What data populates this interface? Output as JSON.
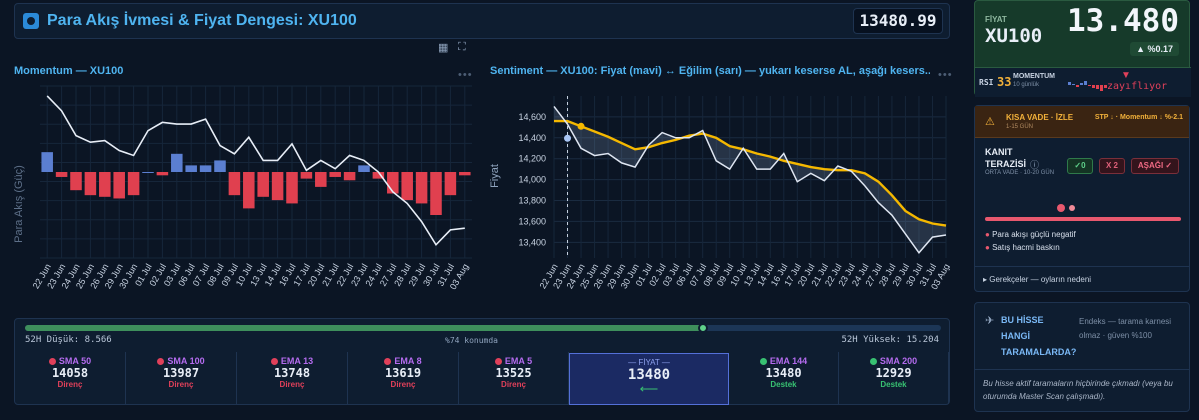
{
  "header": {
    "title": "Para Akış İvmesi & Fiyat Dengesi: XU100",
    "price": "13480.99"
  },
  "momentum_chart": {
    "title": "Momentum — XU100",
    "ylabel": "Para Akış (Güç)",
    "chart_data": {
      "type": "bar",
      "title": "Momentum — XU100",
      "ylabel": "Para Akış (Güç)",
      "categories": [
        "22 Jun",
        "23 Jun",
        "24 Jun",
        "25 Jun",
        "26 Jun",
        "29 Jun",
        "30 Jun",
        "01 Jul",
        "02 Jul",
        "03 Jul",
        "06 Jul",
        "07 Jul",
        "08 Jul",
        "09 Jul",
        "10 Jul",
        "13 Jul",
        "14 Jul",
        "16 Jul",
        "17 Jul",
        "20 Jul",
        "21 Jul",
        "22 Jul",
        "23 Jul",
        "24 Jul",
        "27 Jul",
        "28 Jul",
        "29 Jul",
        "30 Jul",
        "31 Jul",
        "03 Aug"
      ],
      "series": [
        {
          "type": "bar",
          "values": [
            0.6,
            -0.15,
            -0.55,
            -0.7,
            -0.75,
            -0.8,
            -0.7,
            0.0,
            -0.1,
            0.55,
            0.2,
            0.2,
            0.35,
            -0.7,
            -1.1,
            -0.75,
            -0.85,
            -0.95,
            -0.2,
            -0.45,
            -0.15,
            -0.25,
            0.2,
            -0.2,
            -0.65,
            -0.85,
            -0.95,
            -1.3,
            -0.7,
            -0.1
          ]
        },
        {
          "type": "line",
          "values": [
            2.3,
            1.85,
            1.1,
            0.9,
            0.95,
            0.65,
            0.5,
            1.25,
            1.5,
            1.45,
            1.45,
            1.6,
            0.8,
            0.55,
            1.05,
            0.35,
            0.35,
            0.85,
            0.05,
            0.35,
            0.1,
            0.5,
            0.35,
            0.0,
            -0.6,
            -0.95,
            -1.5,
            -2.2,
            -1.75,
            -1.7
          ]
        }
      ]
    }
  },
  "sentiment_chart": {
    "title": "Sentiment — XU100: Fiyat (mavi) ↔ Eğilim (sarı) — yukarı keserse AL, aşağı kesers...",
    "ylabel": "Fiyat",
    "chart_data": {
      "type": "line",
      "title": "Sentiment — XU100: Fiyat (mavi) ↔ Eğilim (sarı) — yukarı keserse AL, aşağı kesers...",
      "ylabel": "Fiyat",
      "ylim": [
        13250,
        14800
      ],
      "yticks": [
        13400,
        13600,
        13800,
        14000,
        14200,
        14400,
        14600
      ],
      "ytick_labels": [
        "13,400",
        "13,600",
        "13,800",
        "14,000",
        "14,200",
        "14,400",
        "14,600"
      ],
      "x": [
        "22 Jun",
        "23 Jun",
        "24 Jun",
        "25 Jun",
        "26 Jun",
        "29 Jun",
        "30 Jun",
        "01 Jul",
        "02 Jul",
        "03 Jul",
        "06 Jul",
        "07 Jul",
        "08 Jul",
        "09 Jul",
        "10 Jul",
        "13 Jul",
        "14 Jul",
        "16 Jul",
        "17 Jul",
        "20 Jul",
        "21 Jul",
        "22 Jul",
        "23 Jul",
        "24 Jul",
        "27 Jul",
        "28 Jul",
        "29 Jul",
        "30 Jul",
        "31 Jul",
        "03 Aug"
      ],
      "series": [
        {
          "color": "#dfe6f2",
          "values": [
            14700,
            14530,
            14300,
            14230,
            14250,
            14160,
            14120,
            14330,
            14450,
            14400,
            14400,
            14470,
            14180,
            14100,
            14300,
            14100,
            14100,
            14250,
            13980,
            14060,
            13990,
            14130,
            14080,
            13940,
            13780,
            13660,
            13480,
            13300,
            13450,
            13470
          ]
        },
        {
          "color": "#f5b800",
          "values": [
            14560,
            14560,
            14510,
            14460,
            14410,
            14350,
            14290,
            14310,
            14350,
            14380,
            14420,
            14440,
            14400,
            14320,
            14290,
            14250,
            14220,
            14180,
            14150,
            14120,
            14100,
            14090,
            14090,
            14060,
            13980,
            13850,
            13700,
            13620,
            13580,
            13560
          ]
        }
      ]
    }
  },
  "range_bar": {
    "low_label": "52H Düşük: 8.566",
    "position_label": "%74 konumda",
    "high_label": "52H Yüksek: 15.204",
    "position_percent": 74
  },
  "levels": [
    {
      "name": "SMA 50",
      "value": "14058",
      "status": "Direnç",
      "color": "#e0405a",
      "kind": "res"
    },
    {
      "name": "SMA 100",
      "value": "13987",
      "status": "Direnç",
      "color": "#e0405a",
      "kind": "res"
    },
    {
      "name": "EMA 13",
      "value": "13748",
      "status": "Direnç",
      "color": "#e0405a",
      "kind": "res"
    },
    {
      "name": "EMA 8",
      "value": "13619",
      "status": "Direnç",
      "color": "#e0405a",
      "kind": "res"
    },
    {
      "name": "EMA 5",
      "value": "13525",
      "status": "Direnç",
      "color": "#e0405a",
      "kind": "res"
    },
    {
      "name": "EMA 144",
      "value": "13480",
      "status": "Destek",
      "color": "#38c172",
      "kind": "sup"
    },
    {
      "name": "SMA 200",
      "value": "12929",
      "status": "Destek",
      "color": "#38c172",
      "kind": "sup"
    }
  ],
  "price_cell": {
    "label": "— FİYAT —",
    "value": "13480",
    "arrow": "⟵"
  },
  "quote": {
    "label": "FİYAT",
    "symbol": "XU100",
    "price": "13.480",
    "change": "▲ %0.17",
    "rsi_label": "RSI",
    "rsi_value": "33",
    "momentum_label": "MOMENTUM",
    "momentum_sub": "10 günlük",
    "momentum_state": "zayıflıyor",
    "spark": [
      0.3,
      0.1,
      -0.2,
      0.2,
      0.4,
      -0.1,
      -0.3,
      -0.4,
      -0.6,
      -0.3
    ]
  },
  "signal": {
    "horizon": "KISA VADE · İZLE",
    "days": "1-15 GÜN",
    "right": "STP ↓ · Momentum ↓ %-2.1",
    "scale_title": "KANIT TERAZİSİ",
    "scale_sub": "ORTA VADE · 10-20 GÜN",
    "ok_badge": "✓0",
    "x_badge": "X 2",
    "down_badge": "AŞAĞI ✓",
    "reasons": [
      "Para akışı güçlü negatif",
      "Satış hacmi baskın"
    ],
    "more": "Gerekçeler — oyların nedeni"
  },
  "scan": {
    "title": "BU HİSSE HANGİ TARAMALARDA?",
    "note": "Endeks — tarama karnesi olmaz · güven %100",
    "body": "Bu hisse aktif taramaların hiçbirinde çıkmadı (veya bu oturumda Master Scan çalışmadı)."
  }
}
